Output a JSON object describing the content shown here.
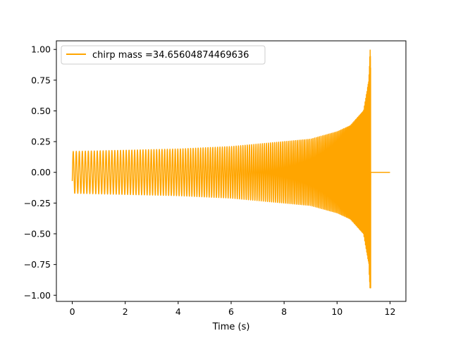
{
  "chart_data": {
    "type": "line",
    "xlabel": "Time (s)",
    "ylabel": "",
    "title": "",
    "xlim": [
      -0.6,
      12.6
    ],
    "ylim": [
      -1.05,
      1.07
    ],
    "xticks": [
      0,
      2,
      4,
      6,
      8,
      10,
      12
    ],
    "yticks": [
      1.0,
      0.75,
      0.5,
      0.25,
      0.0,
      -0.25,
      -0.5,
      -0.75,
      -1.0
    ],
    "xtick_labels": [
      "0",
      "2",
      "4",
      "6",
      "8",
      "10",
      "12"
    ],
    "ytick_labels": [
      "1.00",
      "0.75",
      "0.50",
      "0.25",
      "0.00",
      "−0.25",
      "−0.50",
      "−0.75",
      "−1.00"
    ],
    "legend_position": "top-left",
    "grid": false,
    "series": [
      {
        "name": "chirp mass =34.65604874469636",
        "color": "#ffa500",
        "description": "Chirp waveform: oscillation amplitude grows from ~0.17 to ~1.0 with rising frequency until merger near t≈11.25 s, then flat at 0 until t=12",
        "envelope_points": [
          [
            0.0,
            0.17
          ],
          [
            2.0,
            0.18
          ],
          [
            4.0,
            0.19
          ],
          [
            6.0,
            0.21
          ],
          [
            8.0,
            0.25
          ],
          [
            9.0,
            0.27
          ],
          [
            10.0,
            0.33
          ],
          [
            10.5,
            0.38
          ],
          [
            11.0,
            0.5
          ],
          [
            11.2,
            0.75
          ],
          [
            11.25,
            1.0
          ]
        ],
        "merger_time": 11.27,
        "end_time": 12.0,
        "min_value": -0.94,
        "max_value": 1.0
      }
    ]
  }
}
